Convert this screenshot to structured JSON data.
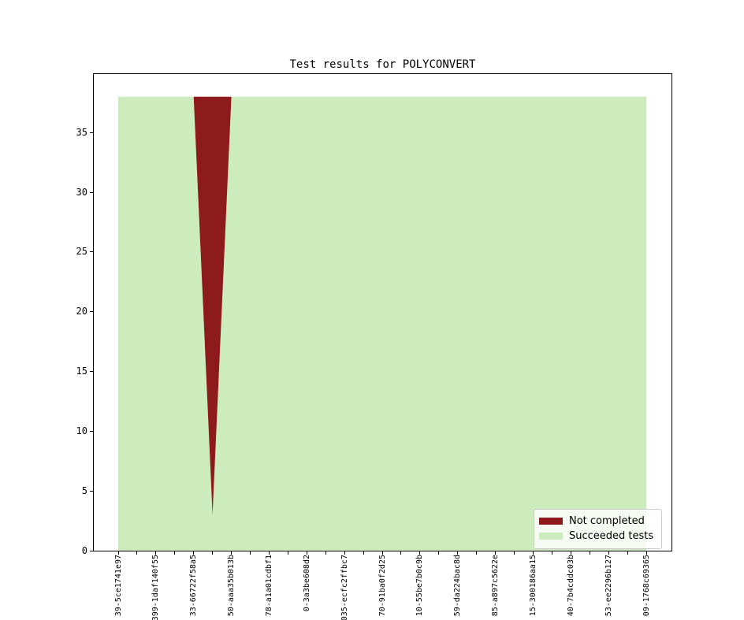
{
  "figure": {
    "title": "Test results for POLYCONVERT",
    "background_color": "#ffffff"
  },
  "y_axis": {
    "ticks": [
      "0",
      "5",
      "10",
      "15",
      "20",
      "25",
      "30",
      "35"
    ]
  },
  "x_axis": {
    "labels": [
      "39-5ce1741e97",
      "399-1daf140f55",
      "33-66722f58a5",
      "50-aaa35b013b",
      "78-a1a01cdbf1",
      "0-3a3be608d2",
      "035-ecfc2ffbc7",
      "70-91ba0f2d25",
      "10-55be7b0c9b",
      "59-da224bac8d",
      "85-a897c5622e",
      "15-300186aa15",
      "40-7b4cddc03b",
      "53-ee2296b127",
      "09-1768c69365"
    ]
  },
  "legend": {
    "entries": [
      {
        "label": "Not completed",
        "color": "#8e1b1b"
      },
      {
        "label": "Succeeded tests",
        "color": "#cdecbd"
      }
    ],
    "position": "lower right"
  },
  "chart_data": {
    "type": "area",
    "stacked": true,
    "title": "Test results for POLYCONVERT",
    "xlabel": "",
    "ylabel": "",
    "x": [
      0,
      1,
      2,
      3,
      4,
      5,
      6,
      7,
      8,
      9,
      10,
      11,
      12,
      13,
      14,
      15,
      16,
      17,
      18,
      19,
      20,
      21,
      22,
      23,
      24,
      25,
      26,
      27,
      28
    ],
    "x_tick_label_indices": [
      0,
      2,
      4,
      6,
      8,
      10,
      12,
      14,
      16,
      18,
      20,
      22,
      24,
      26,
      28
    ],
    "x_tick_rotation": 90,
    "yticks": [
      0,
      5,
      10,
      15,
      20,
      25,
      30,
      35
    ],
    "ylim": [
      0,
      39.9
    ],
    "grid": false,
    "total_tests": 38,
    "series": [
      {
        "name": "Not completed",
        "color": "#8e1b1b",
        "values": [
          0,
          0,
          0,
          0,
          0,
          35,
          0,
          0,
          0,
          0,
          0,
          0,
          0,
          0,
          0,
          0,
          0,
          0,
          0,
          0,
          0,
          0,
          0,
          0,
          0,
          0,
          0,
          0,
          0
        ]
      },
      {
        "name": "Succeeded tests",
        "color": "#cdecbd",
        "values": [
          38,
          38,
          38,
          38,
          38,
          3,
          38,
          38,
          38,
          38,
          38,
          38,
          38,
          38,
          38,
          38,
          38,
          38,
          38,
          38,
          38,
          38,
          38,
          38,
          38,
          38,
          38,
          38,
          38
        ]
      }
    ],
    "stack_order_bottom_to_top": [
      "Succeeded tests",
      "Not completed"
    ]
  }
}
